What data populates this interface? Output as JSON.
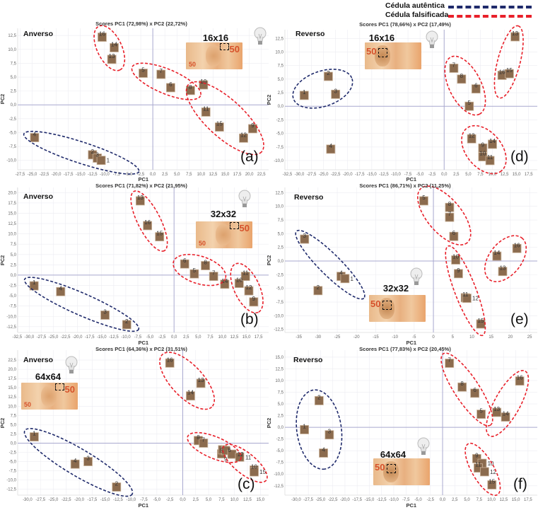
{
  "legend": {
    "authentic_label": "Cédula autêntica",
    "counterfeit_label": "Cédula falsificada",
    "authentic_color": "#1f2a6b",
    "counterfeit_color": "#e8202a"
  },
  "marker_color": "#8b6b4e",
  "banknote_text": "50",
  "chart_data": [
    {
      "panel": "(a)",
      "type": "scatter",
      "side": "Anverso",
      "resolution": "16x16",
      "title": "Scores PC1 (72,98%) x PC2 (22,72%)",
      "xlabel": "PC1",
      "ylabel": "PC2",
      "xlim": [
        -28,
        24
      ],
      "ylim": [
        -11.7,
        13.8
      ],
      "xticks": [
        "-27,5",
        "-25,0",
        "-22,5",
        "-20,0",
        "-17,5",
        "-15,0",
        "-12,5",
        "-10,0",
        "-7,5",
        "-5,0",
        "-2,5",
        "0,0",
        "2,5",
        "5,0",
        "7,5",
        "10,0",
        "12,5",
        "15,0",
        "17,5",
        "20,0",
        "22,5"
      ],
      "yticks": [
        "-10,0",
        "-7,5",
        "-5,0",
        "-2,5",
        "0,0",
        "2,5",
        "5,0",
        "7,5",
        "10,0",
        "12,5"
      ],
      "grid": true,
      "points": [
        {
          "label": "16",
          "x": -10.5,
          "y": 12.2
        },
        {
          "label": "14",
          "x": -8,
          "y": 10.3
        },
        {
          "label": "13",
          "x": -8.5,
          "y": 8.2
        },
        {
          "label": "5",
          "x": -2,
          "y": 5.7
        },
        {
          "label": "7",
          "x": 1.7,
          "y": 5.5
        },
        {
          "label": "6",
          "x": 3.7,
          "y": 3.1
        },
        {
          "label": "8",
          "x": 7.8,
          "y": 2.6
        },
        {
          "label": "10",
          "x": 10.5,
          "y": 3.6
        },
        {
          "label": "11",
          "x": 11,
          "y": -1.3
        },
        {
          "label": "15",
          "x": 13.8,
          "y": -4
        },
        {
          "label": "9",
          "x": 20.7,
          "y": -4.3
        },
        {
          "label": "12",
          "x": 18.8,
          "y": -6
        },
        {
          "label": "4",
          "x": -24.5,
          "y": -5.9
        },
        {
          "label": "2",
          "x": -12.5,
          "y": -9
        },
        {
          "label": "3",
          "x": -11.5,
          "y": -9.6
        },
        {
          "label": "1",
          "x": -10.7,
          "y": -10
        }
      ],
      "groups": [
        {
          "class": "authentic",
          "members": [
            "4",
            "2",
            "3",
            "1"
          ]
        },
        {
          "class": "counterfeit",
          "members": [
            "16",
            "14",
            "13"
          ]
        },
        {
          "class": "counterfeit",
          "members": [
            "5",
            "7",
            "6",
            "8"
          ]
        },
        {
          "class": "counterfeit",
          "members": [
            "10",
            "11",
            "15",
            "9",
            "12"
          ]
        }
      ]
    },
    {
      "panel": "(d)",
      "type": "scatter",
      "side": "Reverso",
      "resolution": "16x16",
      "title": "Scores PC1 (78,66%) x PC2 (17,49%)",
      "xlabel": "PC1",
      "ylabel": "PC2",
      "xlim": [
        -33,
        19.3
      ],
      "ylim": [
        -11.7,
        14.1
      ],
      "xticks": [
        "-32,5",
        "-30,0",
        "-27,5",
        "-25,0",
        "-22,5",
        "-20,0",
        "-17,5",
        "-15,0",
        "-12,5",
        "-10,0",
        "-7,5",
        "-5,0",
        "-2,5",
        "0,0",
        "2,5",
        "5,0",
        "7,5",
        "10,0",
        "12,5",
        "15,0",
        "17,5"
      ],
      "yticks": [
        "-10,0",
        "-7,5",
        "-5,0",
        "-2,5",
        "0,0",
        "2,5",
        "5,0",
        "7,5",
        "10,0",
        "12,5"
      ],
      "grid": true,
      "points": [
        {
          "label": "13",
          "x": 14.7,
          "y": 12.8
        },
        {
          "label": "7",
          "x": 2,
          "y": 7
        },
        {
          "label": "8",
          "x": 3.6,
          "y": 5
        },
        {
          "label": "6",
          "x": 6.6,
          "y": 3.2
        },
        {
          "label": "5",
          "x": 5.2,
          "y": 0
        },
        {
          "label": "16",
          "x": 12,
          "y": 5.7
        },
        {
          "label": "15",
          "x": 13.5,
          "y": 6
        },
        {
          "label": "1",
          "x": -29,
          "y": 2
        },
        {
          "label": "2",
          "x": -24,
          "y": 5.5
        },
        {
          "label": "3",
          "x": -22.5,
          "y": 2.2
        },
        {
          "label": "4",
          "x": -23.5,
          "y": -7.9
        },
        {
          "label": "12",
          "x": 5.7,
          "y": -6
        },
        {
          "label": "9",
          "x": 8,
          "y": -7.7
        },
        {
          "label": "14",
          "x": 10,
          "y": -7
        },
        {
          "label": "10",
          "x": 8,
          "y": -9.3
        },
        {
          "label": "11",
          "x": 9.5,
          "y": -10
        }
      ],
      "groups": [
        {
          "class": "authentic",
          "members": [
            "1",
            "2",
            "3"
          ]
        },
        {
          "class": "counterfeit",
          "members": [
            "7",
            "8",
            "6",
            "5"
          ]
        },
        {
          "class": "counterfeit",
          "members": [
            "13",
            "16",
            "15"
          ]
        },
        {
          "class": "counterfeit",
          "members": [
            "12",
            "9",
            "14",
            "10",
            "11"
          ]
        }
      ]
    },
    {
      "panel": "(b)",
      "type": "scatter",
      "side": "Anverso",
      "resolution": "32x32",
      "title": "Scores PC1 (71,82%) x PC2 (21,95%)",
      "xlabel": "PC1",
      "ylabel": "PC2",
      "xlim": [
        -32.4,
        19.6
      ],
      "ylim": [
        -13.9,
        21.25
      ],
      "xticks": [
        "-32,5",
        "-30,0",
        "-27,5",
        "-25,0",
        "-22,5",
        "-20,0",
        "-17,5",
        "-15,0",
        "-12,5",
        "-10,0",
        "-7,5",
        "-5,0",
        "-2,5",
        "0,0",
        "2,5",
        "5,0",
        "7,5",
        "10,0",
        "12,5",
        "15,0",
        "17,5"
      ],
      "yticks": [
        "-12,5",
        "-10,0",
        "-7,5",
        "-5,0",
        "-2,5",
        "0,0",
        "2,5",
        "5,0",
        "7,5",
        "10,0",
        "12,5",
        "15,0",
        "17,5",
        "20,0"
      ],
      "grid": true,
      "points": [
        {
          "label": "13",
          "x": -7,
          "y": 18
        },
        {
          "label": "16",
          "x": -5.5,
          "y": 12
        },
        {
          "label": "15",
          "x": -3,
          "y": 9.3
        },
        {
          "label": "6",
          "x": 2.2,
          "y": 2.7
        },
        {
          "label": "5",
          "x": 4.2,
          "y": 0.3
        },
        {
          "label": "8",
          "x": 6.5,
          "y": 2.3
        },
        {
          "label": "7",
          "x": 8.2,
          "y": -0.3
        },
        {
          "label": "14",
          "x": 10.5,
          "y": -2.2
        },
        {
          "label": "10",
          "x": 13.5,
          "y": -2
        },
        {
          "label": "11",
          "x": 14.8,
          "y": -0.3
        },
        {
          "label": "12",
          "x": 15.5,
          "y": -3.8
        },
        {
          "label": "9",
          "x": 16.5,
          "y": -6.5
        },
        {
          "label": "1",
          "x": -29,
          "y": -2.6
        },
        {
          "label": "4",
          "x": -23.5,
          "y": -4
        },
        {
          "label": "3",
          "x": -14.3,
          "y": -9.7
        },
        {
          "label": "2",
          "x": -9.8,
          "y": -12
        }
      ],
      "groups": [
        {
          "class": "authentic",
          "members": [
            "1",
            "4",
            "3",
            "2"
          ]
        },
        {
          "class": "counterfeit",
          "members": [
            "13",
            "16",
            "15"
          ]
        },
        {
          "class": "counterfeit",
          "members": [
            "6",
            "5",
            "8",
            "7"
          ]
        },
        {
          "class": "counterfeit",
          "members": [
            "10",
            "11",
            "12",
            "9"
          ]
        }
      ]
    },
    {
      "panel": "(e)",
      "type": "scatter",
      "side": "Reverso",
      "resolution": "32x32",
      "title": "Scores PC1 (86,71%) x PC2 (11,25%)",
      "xlabel": "PC1",
      "ylabel": "PC2",
      "xlim": [
        -38.6,
        27
      ],
      "ylim": [
        -13.05,
        13.45
      ],
      "xticks": [
        "-35",
        "-30",
        "-25",
        "-20",
        "-15",
        "-10",
        "-5",
        "0",
        "5",
        "10",
        "15",
        "20",
        "25"
      ],
      "yticks": [
        "-12,5",
        "-10,0",
        "-7,5",
        "-5,0",
        "-2,5",
        "0,0",
        "2,5",
        "5,0",
        "7,5",
        "10,0",
        "12,5"
      ],
      "grid": true,
      "points": [
        {
          "label": "5",
          "x": -2.5,
          "y": 11
        },
        {
          "label": "8",
          "x": 4.2,
          "y": 9.8
        },
        {
          "label": "7",
          "x": 4.2,
          "y": 8
        },
        {
          "label": "6",
          "x": 5.3,
          "y": 4.5
        },
        {
          "label": "10",
          "x": 5.8,
          "y": 0.2
        },
        {
          "label": "9",
          "x": 6.5,
          "y": -2.3
        },
        {
          "label": "11",
          "x": 8.3,
          "y": -6.7
        },
        {
          "label": "12",
          "x": 8.7,
          "y": -6.8
        },
        {
          "label": "15",
          "x": 12.3,
          "y": -11.5
        },
        {
          "label": "14",
          "x": 16.5,
          "y": 0.9
        },
        {
          "label": "16",
          "x": 21.7,
          "y": 2.3
        },
        {
          "label": "13",
          "x": 18,
          "y": -1.9
        },
        {
          "label": "3",
          "x": -33.5,
          "y": 4
        },
        {
          "label": "4",
          "x": -24,
          "y": -2.8
        },
        {
          "label": "1",
          "x": -23,
          "y": -3.2
        },
        {
          "label": "2",
          "x": -30,
          "y": -5.4
        }
      ],
      "groups": [
        {
          "class": "authentic",
          "members": [
            "3",
            "4",
            "1"
          ]
        },
        {
          "class": "counterfeit",
          "members": [
            "5",
            "8",
            "7",
            "6"
          ]
        },
        {
          "class": "counterfeit",
          "members": [
            "10",
            "9",
            "11",
            "12",
            "15"
          ]
        },
        {
          "class": "counterfeit",
          "members": [
            "14",
            "16",
            "13"
          ]
        }
      ]
    },
    {
      "panel": "(c)",
      "type": "scatter",
      "side": "Anverso",
      "resolution": "64x64",
      "title": "Scores PC1 (64,36%) x PC2 (31,51%)",
      "xlabel": "PC1",
      "ylabel": "PC2",
      "xlim": [
        -31.9,
        16.6
      ],
      "ylim": [
        -14.1,
        25.2
      ],
      "xticks": [
        "-30,0",
        "-27,5",
        "-25,0",
        "-22,5",
        "-20,0",
        "-17,5",
        "-15,0",
        "-12,5",
        "-10,0",
        "-7,5",
        "-5,0",
        "-2,5",
        "0,0",
        "2,5",
        "5,0",
        "7,5",
        "10,0",
        "12,5",
        "15,0"
      ],
      "yticks": [
        "-12,5",
        "-10,0",
        "-7,5",
        "-5,0",
        "-2,5",
        "0,0",
        "2,5",
        "5,0",
        "7,5",
        "10,0",
        "12,5",
        "15,0",
        "17,5",
        "20,0",
        "22,5"
      ],
      "grid": true,
      "points": [
        {
          "label": "16",
          "x": -2.5,
          "y": 21.7
        },
        {
          "label": "13",
          "x": 3.5,
          "y": 16.2
        },
        {
          "label": "14",
          "x": 1.5,
          "y": 12.8
        },
        {
          "label": "8",
          "x": 3,
          "y": 0.7
        },
        {
          "label": "7",
          "x": 4,
          "y": 0
        },
        {
          "label": "5",
          "x": 7.5,
          "y": -2.9
        },
        {
          "label": "6",
          "x": 7.7,
          "y": -1.8
        },
        {
          "label": "9",
          "x": 8.3,
          "y": -2
        },
        {
          "label": "12",
          "x": 9.5,
          "y": -3
        },
        {
          "label": "11",
          "x": 11,
          "y": -3.8
        },
        {
          "label": "10",
          "x": 13.8,
          "y": -7.3
        },
        {
          "label": "15",
          "x": 13.8,
          "y": -7.8
        },
        {
          "label": "1",
          "x": -28.7,
          "y": 1.7
        },
        {
          "label": "4",
          "x": -20.8,
          "y": -5.7
        },
        {
          "label": "3",
          "x": -18.3,
          "y": -5
        },
        {
          "label": "2",
          "x": -12.8,
          "y": -11.9
        }
      ],
      "groups": [
        {
          "class": "authentic",
          "members": [
            "1",
            "4",
            "3",
            "2"
          ]
        },
        {
          "class": "counterfeit",
          "members": [
            "16",
            "13",
            "14"
          ]
        },
        {
          "class": "counterfeit",
          "members": [
            "8",
            "7",
            "5",
            "6",
            "9"
          ]
        },
        {
          "class": "counterfeit",
          "members": [
            "12",
            "11",
            "10",
            "15"
          ]
        }
      ]
    },
    {
      "panel": "(f)",
      "type": "scatter",
      "side": "Reverso",
      "resolution": "64x64",
      "title": "Scores PC1 (77,83%) x PC2 (20,45%)",
      "xlabel": "PC1",
      "ylabel": "PC2",
      "xlim": [
        -32.3,
        19.4
      ],
      "ylim": [
        -14.5,
        16.5
      ],
      "xticks": [
        "-30,0",
        "-27,5",
        "-25,0",
        "-22,5",
        "-20,0",
        "-17,5",
        "-15,0",
        "-12,5",
        "-10,0",
        "-7,5",
        "-5,0",
        "-2,5",
        "0,0",
        "2,5",
        "5,0",
        "7,5",
        "10,0",
        "12,5",
        "15,0",
        "17,5"
      ],
      "yticks": [
        "-12,5",
        "-10,0",
        "-7,5",
        "-5,0",
        "-2,5",
        "0,0",
        "2,5",
        "5,0",
        "7,5",
        "10,0",
        "12,5",
        "15,0"
      ],
      "grid": true,
      "points": [
        {
          "label": "7",
          "x": 1.4,
          "y": 13.7
        },
        {
          "label": "8",
          "x": 4,
          "y": 8.6
        },
        {
          "label": "6",
          "x": 6.6,
          "y": 7.3
        },
        {
          "label": "5",
          "x": 7.9,
          "y": 2.8
        },
        {
          "label": "13",
          "x": 11.1,
          "y": 3.2
        },
        {
          "label": "14",
          "x": 12.9,
          "y": 2.2
        },
        {
          "label": "16",
          "x": 15.8,
          "y": 9.9
        },
        {
          "label": "1",
          "x": -28.3,
          "y": -0.5
        },
        {
          "label": "2",
          "x": -25.3,
          "y": 5.7
        },
        {
          "label": "3",
          "x": -23.2,
          "y": -1.6
        },
        {
          "label": "4",
          "x": -24.4,
          "y": -5.5
        },
        {
          "label": "9",
          "x": 7,
          "y": -6.7
        },
        {
          "label": "10",
          "x": 8.1,
          "y": -7.7
        },
        {
          "label": "11",
          "x": 7.3,
          "y": -8.7
        },
        {
          "label": "12",
          "x": 8.6,
          "y": -9.5
        },
        {
          "label": "15",
          "x": 10.1,
          "y": -12.3
        }
      ],
      "groups": [
        {
          "class": "authentic",
          "members": [
            "1",
            "2",
            "3",
            "4"
          ]
        },
        {
          "class": "counterfeit",
          "members": [
            "7",
            "8",
            "6",
            "5"
          ]
        },
        {
          "class": "counterfeit",
          "members": [
            "16",
            "13",
            "14"
          ]
        },
        {
          "class": "counterfeit",
          "members": [
            "9",
            "10",
            "11",
            "12",
            "15"
          ]
        }
      ]
    }
  ]
}
